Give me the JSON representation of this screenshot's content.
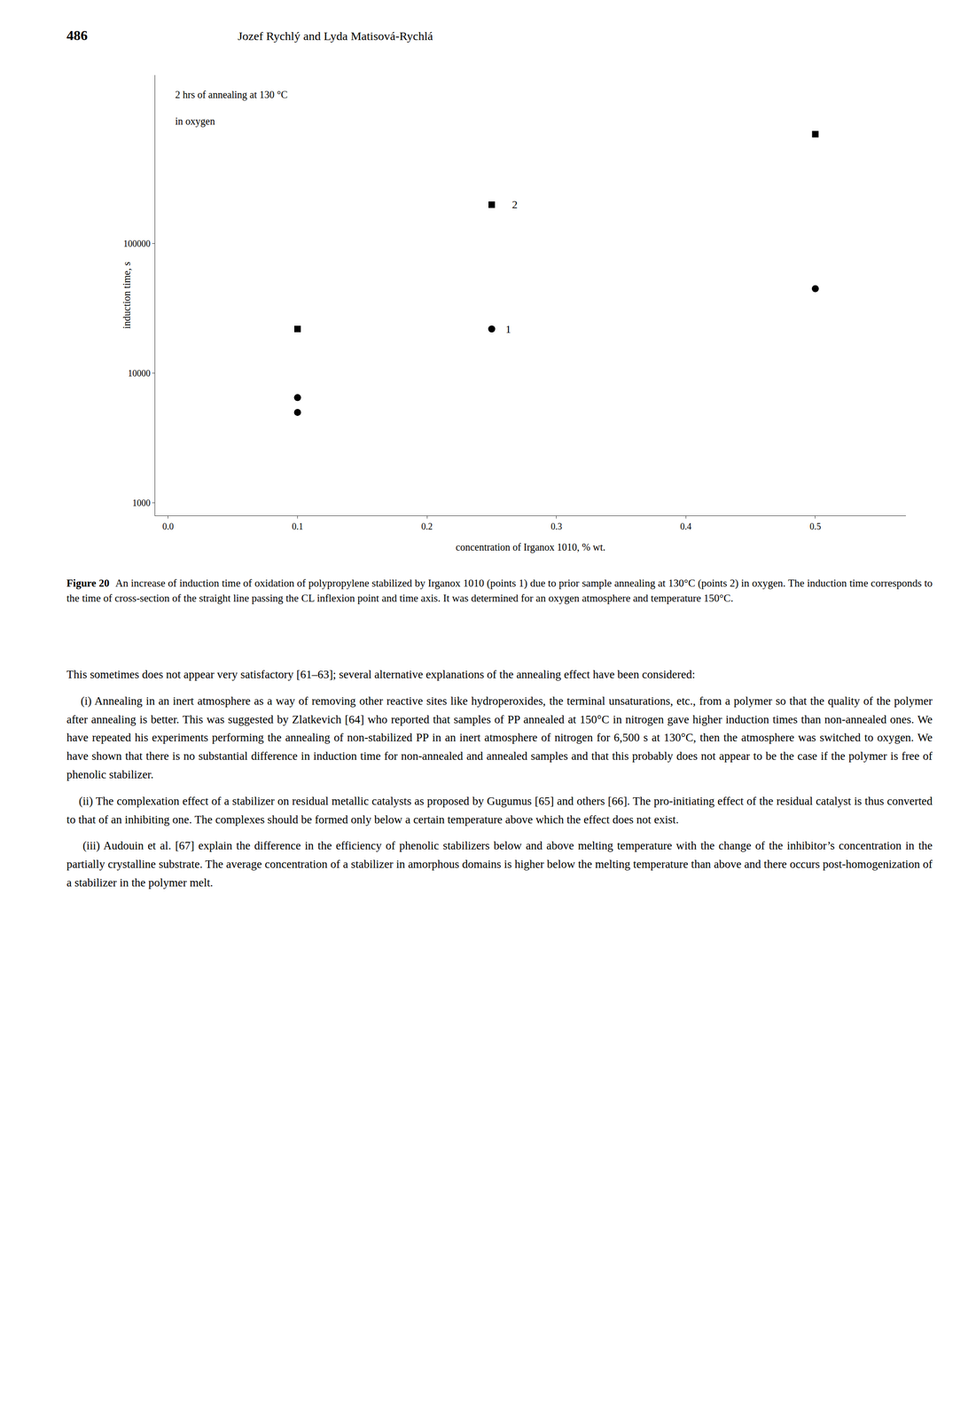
{
  "page_number": "486",
  "header": "Jozef Rychlý and Lyda Matisová-Rychlá",
  "chart_data": {
    "type": "scatter",
    "x_label": "concentration of Irganox 1010, % wt.",
    "y_label": "induction time, s",
    "log": "y",
    "grid": false,
    "xlim": [
      -0.01,
      0.57
    ],
    "xticks": [
      {
        "value": 0.0,
        "label": "0.0"
      },
      0.1,
      0.2,
      0.3,
      0.4,
      0.5
    ],
    "ylim": [
      800,
      2000000
    ],
    "yticks": [
      1000,
      10000,
      100000
    ],
    "series": [
      {
        "marker": "square",
        "color": "#000000",
        "x": [
          0.1,
          0.25,
          0.5
        ],
        "values": [
          22000,
          200000,
          700000
        ]
      },
      {
        "marker": "circle",
        "color": "#000000",
        "x": [
          0.1,
          0.1,
          0.25,
          0.5
        ],
        "values": [
          6500,
          5000,
          22000,
          45000
        ]
      }
    ],
    "annotations": [
      {
        "text": "2",
        "x": 0.265,
        "y": 200000
      },
      {
        "text": "1",
        "x": 0.26,
        "y": 22000
      },
      {
        "text": "2 hrs of annealing at 130 °C"
      },
      {
        "text": "in oxygen"
      }
    ]
  },
  "caption_bold": "Figure 20",
  "caption": "An increase of induction time of oxidation of polypropylene stabilized by Irganox 1010 (points 1) due to prior sample annealing at 130°C (points 2) in oxygen. The induction time corresponds to the time of cross-section of the straight line passing the CL inflexion point and time axis. It was determined for an oxygen atmosphere and temperature 150°C.",
  "body": [
    "This sometimes does not appear very satisfactory [61–63]; several alternative explanations of the annealing effect have been considered:",
    "    (i) Annealing in an inert atmosphere as a way of removing other reactive sites like hydroperoxides, the terminal unsaturations, etc., from a polymer so that the quality of the polymer after annealing is better. This was suggested by Zlatkevich [64] who reported that samples of PP annealed at 150°C in nitrogen gave higher induction times than non-annealed ones. We have repeated his experiments performing the annealing of non-stabilized PP in an inert atmosphere of nitrogen for 6,500 s at 130°C, then the atmosphere was switched to oxygen. We have shown that there is no substantial difference in induction time for non-annealed and annealed samples and that this probably does not appear to be the case if the polymer is free of phenolic stabilizer.",
    "    (ii) The complexation effect of a stabilizer on residual metallic catalysts as proposed by Gugumus [65] and others [66]. The pro-initiating effect of the residual catalyst is thus converted to that of an inhibiting one. The complexes should be formed only below a certain temperature above which the effect does not exist.",
    "    (iii) Audouin et al. [67] explain the difference in the efficiency of phenolic stabilizers below and above melting temperature with the change of the inhibitor’s concentration in the partially crystalline substrate. The average concentration of a stabilizer in amorphous domains is higher below the melting temperature than above and there occurs post-homogenization of a stabilizer in the polymer melt."
  ]
}
